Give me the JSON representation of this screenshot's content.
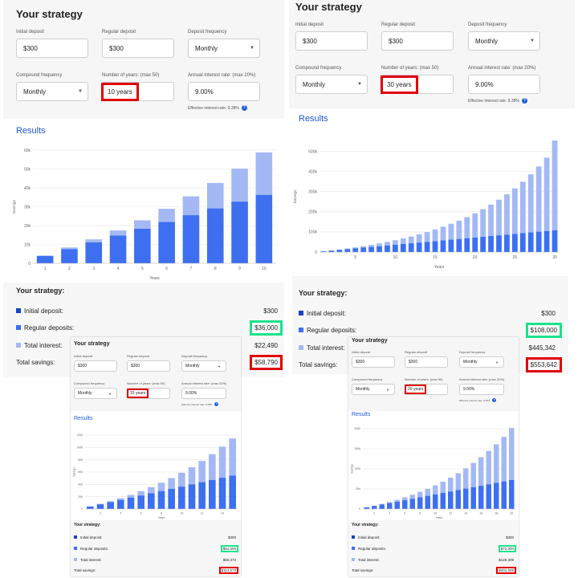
{
  "colors": {
    "deposit": "#3d6ff0",
    "interest": "#a4b9f3",
    "initial": "#1643c7",
    "accent": "#1f56d8",
    "red": "#e00000",
    "green": "#19e38a"
  },
  "labels": {
    "strategy_title": "Your strategy",
    "initial_deposit": "Initial deposit",
    "regular_deposit": "Regular deposit",
    "deposit_frequency": "Deposit frequency",
    "compound_frequency": "Compound frequency",
    "number_of_years": "Number of years: (max 50)",
    "annual_rate": "Annual interest rate: (max 20%)",
    "effective_rate": "Effective interest rate: 9.38%",
    "results": "Results",
    "summary_title": "Your strategy:",
    "s_initial": "Initial deposit:",
    "s_regular": "Regular deposits:",
    "s_interest": "Total interest:",
    "s_total": "Total savings:",
    "years_axis": "Years",
    "savings_axis": "Savings"
  },
  "scenarios": [
    {
      "id": "10y",
      "initial": "$300",
      "regular": "$300",
      "deposit_freq": "Monthly",
      "compound_freq": "Monthly",
      "years": "10 years",
      "rate": "9.00%",
      "summary": {
        "initial": "$300",
        "regular": "$36,000",
        "interest": "$22,490",
        "total": "$58,790"
      },
      "chart_data": {
        "type": "bar",
        "stacked": true,
        "x": [
          1,
          2,
          3,
          4,
          5,
          6,
          7,
          8,
          9,
          10
        ],
        "series": [
          {
            "values": [
              3900,
              7500,
              11100,
              14700,
              18300,
              21900,
              25500,
              29100,
              32700,
              36300
            ]
          },
          {
            "values": [
              200,
              900,
              1600,
              2700,
              4500,
              7000,
              10000,
              13500,
              17500,
              22490
            ]
          }
        ],
        "ylim": [
          0,
          60000
        ],
        "yticks": [
          "0",
          "10k",
          "20k",
          "30k",
          "40k",
          "50k",
          "60k"
        ],
        "xticks": [
          "1",
          "2",
          "3",
          "4",
          "5",
          "6",
          "7",
          "8",
          "9",
          "10"
        ]
      }
    },
    {
      "id": "30y",
      "initial": "$300",
      "regular": "$300",
      "deposit_freq": "Monthly",
      "compound_freq": "Monthly",
      "years": "30 years",
      "rate": "9.00%",
      "summary": {
        "initial": "$300",
        "regular": "$108,000",
        "interest": "$445,342",
        "total": "$553,642"
      },
      "chart_data": {
        "type": "bar",
        "stacked": true,
        "x": [
          1,
          2,
          3,
          4,
          5,
          6,
          7,
          8,
          9,
          10,
          11,
          12,
          13,
          14,
          15,
          16,
          17,
          18,
          19,
          20,
          21,
          22,
          23,
          24,
          25,
          26,
          27,
          28,
          29,
          30
        ],
        "series": [
          {
            "values": [
              3900,
              7500,
              11100,
              14700,
              18300,
              21900,
              25500,
              29100,
              32700,
              36300,
              39900,
              43500,
              47100,
              50700,
              54300,
              57900,
              61500,
              65100,
              68700,
              72300,
              75900,
              79500,
              83100,
              86700,
              90300,
              93900,
              97500,
              101100,
              104700,
              108300
            ]
          },
          {
            "values": [
              200,
              900,
              1700,
              3200,
              5000,
              7500,
              10500,
              14000,
              18000,
              22500,
              28000,
              34000,
              41000,
              49000,
              58000,
              68000,
              79000,
              91000,
              105000,
              120000,
              137000,
              156000,
              177000,
              200000,
              226000,
              255000,
              288000,
              324000,
              364000,
              445342
            ]
          }
        ],
        "ylim": [
          0,
          550000
        ],
        "yticks": [
          "0",
          "100k",
          "200k",
          "300k",
          "400k",
          "500k"
        ],
        "xticks": [
          "5",
          "10",
          "15",
          "20",
          "25",
          "30"
        ]
      }
    },
    {
      "id": "15y",
      "initial": "$300",
      "regular": "$300",
      "deposit_freq": "Monthly",
      "compound_freq": "Monthly",
      "years": "15 years",
      "rate": "9.00%",
      "summary": {
        "initial": "$300",
        "regular": "$54,000",
        "interest": "$60,373",
        "total": "$114,673"
      },
      "chart_data": {
        "type": "bar",
        "stacked": true,
        "x": [
          1,
          2,
          3,
          4,
          5,
          6,
          7,
          8,
          9,
          10,
          11,
          12,
          13,
          14,
          15
        ],
        "series": [
          {
            "values": [
              3900,
              7500,
              11100,
              14700,
              18300,
              21900,
              25500,
              29100,
              32700,
              36300,
              39900,
              43500,
              47100,
              50700,
              54300
            ]
          },
          {
            "values": [
              200,
              900,
              1600,
              2700,
              4500,
              7000,
              10000,
              13500,
              17500,
              22490,
              28000,
              34500,
              42000,
              50500,
              60373
            ]
          }
        ],
        "ylim": [
          0,
          120000
        ],
        "yticks": [
          "0",
          "20k",
          "40k",
          "60k",
          "80k",
          "100k",
          "120k"
        ],
        "xticks": [
          "2",
          "4",
          "6",
          "8",
          "10",
          "12",
          "14"
        ]
      }
    },
    {
      "id": "20y",
      "initial": "$300",
      "regular": "$300",
      "deposit_freq": "Monthly",
      "compound_freq": "Monthly",
      "years": "20 years",
      "rate": "9.00%",
      "summary": {
        "initial": "$300",
        "regular": "$72,000",
        "interest": "$129,309",
        "total": "$201,609"
      },
      "chart_data": {
        "type": "bar",
        "stacked": true,
        "x": [
          1,
          2,
          3,
          4,
          5,
          6,
          7,
          8,
          9,
          10,
          11,
          12,
          13,
          14,
          15,
          16,
          17,
          18,
          19,
          20
        ],
        "series": [
          {
            "values": [
              3900,
              7500,
              11100,
              14700,
              18300,
              21900,
              25500,
              29100,
              32700,
              36300,
              39900,
              43500,
              47100,
              50700,
              54300,
              57900,
              61500,
              65100,
              68700,
              72300
            ]
          },
          {
            "values": [
              200,
              900,
              1600,
              2700,
              4500,
              7000,
              10000,
              13500,
              17500,
              22490,
              28000,
              34500,
              42000,
              50500,
              60373,
              71000,
              83000,
              96000,
              111000,
              129309
            ]
          }
        ],
        "ylim": [
          0,
          200000
        ],
        "yticks": [
          "0",
          "50k",
          "100k",
          "150k",
          "200k"
        ],
        "xticks": [
          "2",
          "4",
          "6",
          "8",
          "10",
          "12",
          "14",
          "16",
          "18",
          "20"
        ]
      }
    }
  ]
}
